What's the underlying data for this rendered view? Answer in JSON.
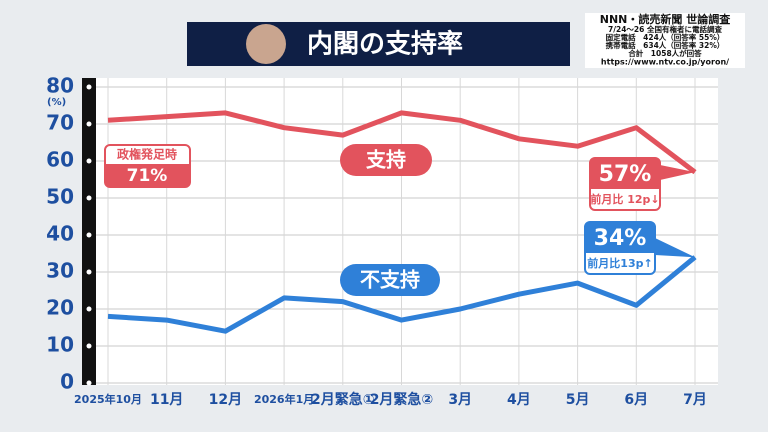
{
  "chart_data": {
    "type": "line",
    "title": "内閣の支持率",
    "source": [
      "NNN・読売新聞 世論調査",
      "7/24〜26 全国有権者に電話調査",
      "固定電話　424人（回答率 55%）",
      "携帯電話　634人（回答率 32%）",
      "合計　1058人が回答",
      "https://www.ntv.co.jp/yoron/"
    ],
    "y_unit": "(%)",
    "categories": [
      "2025年10月",
      "11月",
      "12月",
      "2026年1月",
      "2月緊急①",
      "2月緊急②",
      "3月",
      "4月",
      "5月",
      "6月",
      "7月"
    ],
    "series": [
      {
        "name": "支持",
        "color": "#e2535d",
        "values": [
          71,
          72,
          73,
          69,
          67,
          73,
          71,
          66,
          64,
          69,
          57
        ],
        "value_labels": [
          "71%",
          null,
          null,
          null,
          null,
          null,
          null,
          null,
          null,
          null,
          "57%"
        ]
      },
      {
        "name": "不支持",
        "color": "#2f80d8",
        "values": [
          18,
          17,
          14,
          23,
          22,
          17,
          20,
          24,
          27,
          21,
          34
        ],
        "value_labels": [
          null,
          null,
          null,
          null,
          null,
          null,
          null,
          null,
          null,
          null,
          "34%"
        ]
      }
    ],
    "annotations": {
      "start": "政権発足時",
      "support_change": "前月比 12p↓",
      "nonsupport_change": "前月比13p↑"
    },
    "ylim": [
      0,
      80
    ],
    "yticks": [
      0,
      10,
      20,
      30,
      40,
      50,
      60,
      70,
      80
    ],
    "grid": true
  }
}
